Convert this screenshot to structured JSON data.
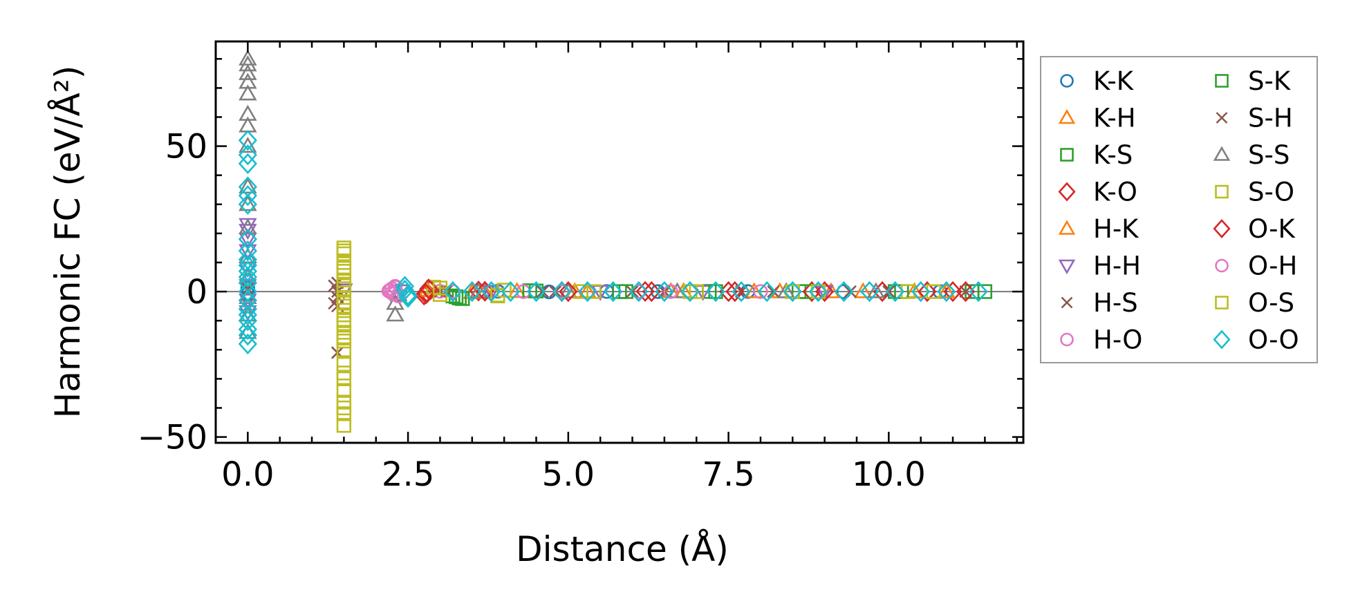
{
  "chart_data": {
    "type": "scatter",
    "xlabel": "Distance (Å)",
    "ylabel": "Harmonic FC (eV/Å²)",
    "xlim": [
      -0.5,
      12.1
    ],
    "ylim": [
      -52,
      86
    ],
    "xticks": [
      0.0,
      2.5,
      5.0,
      7.5,
      10.0
    ],
    "xtick_labels": [
      "0.0",
      "2.5",
      "5.0",
      "7.5",
      "10.0"
    ],
    "yticks": [
      -50,
      0,
      50
    ],
    "ytick_labels": [
      "−50",
      "0",
      "50"
    ],
    "zero_line": true,
    "grid": false,
    "legend_position": "outside right, two columns",
    "series": [
      {
        "name": "K-K",
        "marker": "circle",
        "color": "#1f77b4",
        "points": [
          [
            0.0,
            1.2
          ],
          [
            0.0,
            -0.8
          ],
          [
            3.9,
            0.1
          ],
          [
            4.7,
            -0.1
          ],
          [
            5.6,
            0.05
          ],
          [
            6.4,
            0.0
          ],
          [
            7.8,
            0.02
          ],
          [
            9.3,
            0.0
          ],
          [
            10.8,
            0.0
          ]
        ]
      },
      {
        "name": "K-H",
        "marker": "triangle-up",
        "color": "#ff7f0e",
        "points": [
          [
            2.8,
            0.4
          ],
          [
            3.5,
            -0.3
          ],
          [
            4.2,
            0.1
          ],
          [
            5.3,
            0.0
          ],
          [
            6.6,
            0.05
          ],
          [
            7.9,
            0.0
          ],
          [
            9.1,
            0.0
          ],
          [
            10.4,
            0.0
          ]
        ]
      },
      {
        "name": "K-S",
        "marker": "square",
        "color": "#2ca02c",
        "points": [
          [
            3.2,
            -1.5
          ],
          [
            3.3,
            -2.2
          ],
          [
            4.4,
            0.3
          ],
          [
            5.8,
            0.0
          ],
          [
            7.2,
            0.05
          ],
          [
            8.6,
            0.0
          ],
          [
            10.1,
            0.0
          ],
          [
            11.3,
            0.0
          ]
        ]
      },
      {
        "name": "K-O",
        "marker": "diamond",
        "color": "#d62728",
        "points": [
          [
            2.75,
            -1.2
          ],
          [
            2.8,
            -0.4
          ],
          [
            2.85,
            0.6
          ],
          [
            3.6,
            0.2
          ],
          [
            4.9,
            0.0
          ],
          [
            6.2,
            0.05
          ],
          [
            7.5,
            0.0
          ],
          [
            8.8,
            0.0
          ],
          [
            9.9,
            0.0
          ],
          [
            11.0,
            0.0
          ]
        ]
      },
      {
        "name": "H-K",
        "marker": "triangle-up",
        "color": "#ff7f0e",
        "points": [
          [
            2.8,
            0.5
          ],
          [
            3.7,
            -0.2
          ],
          [
            5.1,
            0.0
          ],
          [
            6.8,
            0.05
          ],
          [
            8.3,
            0.0
          ],
          [
            9.6,
            0.0
          ],
          [
            10.9,
            0.0
          ]
        ]
      },
      {
        "name": "H-H",
        "marker": "triangle-down",
        "color": "#9467bd",
        "points": [
          [
            0.0,
            23
          ],
          [
            0.0,
            21
          ],
          [
            0.0,
            18
          ],
          [
            0.0,
            14
          ],
          [
            0.0,
            8
          ],
          [
            0.0,
            2
          ],
          [
            0.0,
            -3
          ],
          [
            0.0,
            -7
          ],
          [
            1.5,
            0.5
          ],
          [
            2.4,
            0.2
          ],
          [
            3.8,
            0.0
          ],
          [
            5.5,
            0.0
          ],
          [
            7.1,
            0.0
          ],
          [
            9.0,
            0.0
          ]
        ]
      },
      {
        "name": "H-S",
        "marker": "x",
        "color": "#8c564b",
        "points": [
          [
            0.0,
            1
          ],
          [
            1.4,
            3
          ],
          [
            1.4,
            0
          ],
          [
            1.4,
            -2
          ],
          [
            1.4,
            -5
          ],
          [
            1.4,
            -21
          ],
          [
            3.1,
            0.1
          ],
          [
            4.6,
            0.0
          ],
          [
            6.0,
            0.0
          ],
          [
            7.7,
            0.0
          ],
          [
            9.4,
            0.0
          ],
          [
            11.2,
            0.0
          ]
        ]
      },
      {
        "name": "H-O",
        "marker": "circle",
        "color": "#e377c2",
        "points": [
          [
            2.2,
            0.2
          ],
          [
            2.25,
            1.0
          ],
          [
            2.25,
            -0.5
          ],
          [
            2.3,
            1.5
          ],
          [
            2.35,
            -1.0
          ],
          [
            3.0,
            0.1
          ],
          [
            4.3,
            0.0
          ],
          [
            6.1,
            0.0
          ],
          [
            8.0,
            0.0
          ]
        ]
      },
      {
        "name": "S-K",
        "marker": "square",
        "color": "#2ca02c",
        "points": [
          [
            3.25,
            -1.8
          ],
          [
            3.35,
            -2.4
          ],
          [
            4.5,
            0.2
          ],
          [
            5.9,
            0.0
          ],
          [
            7.3,
            0.0
          ],
          [
            8.7,
            0.0
          ],
          [
            10.2,
            0.0
          ],
          [
            11.5,
            0.0
          ]
        ]
      },
      {
        "name": "S-H",
        "marker": "x",
        "color": "#8c564b",
        "points": [
          [
            1.35,
            2
          ],
          [
            1.35,
            -4
          ],
          [
            1.4,
            -21
          ],
          [
            3.0,
            0.0
          ],
          [
            4.8,
            0.0
          ],
          [
            6.5,
            0.0
          ],
          [
            8.2,
            0.0
          ],
          [
            10.0,
            0.0
          ]
        ]
      },
      {
        "name": "S-S",
        "marker": "triangle-up",
        "color": "#7f7f7f",
        "points": [
          [
            0.0,
            80
          ],
          [
            0.0,
            78
          ],
          [
            0.0,
            75
          ],
          [
            0.0,
            72
          ],
          [
            0.0,
            68
          ],
          [
            0.0,
            61
          ],
          [
            0.0,
            57
          ],
          [
            0.0,
            50
          ],
          [
            0.0,
            36
          ],
          [
            0.0,
            30
          ],
          [
            0.0,
            22
          ],
          [
            0.0,
            12
          ],
          [
            0.0,
            5
          ],
          [
            0.0,
            -2
          ],
          [
            0.0,
            -8
          ],
          [
            0.0,
            -14
          ],
          [
            2.3,
            -8
          ],
          [
            2.3,
            -4
          ],
          [
            2.35,
            -1
          ],
          [
            3.6,
            0.0
          ],
          [
            5.0,
            0.0
          ],
          [
            6.7,
            0.0
          ],
          [
            8.4,
            0.0
          ],
          [
            9.8,
            0.0
          ]
        ]
      },
      {
        "name": "S-O",
        "marker": "square",
        "color": "#bcbd22",
        "points": [
          [
            1.5,
            15
          ],
          [
            1.5,
            13
          ],
          [
            1.5,
            10
          ],
          [
            1.5,
            7
          ],
          [
            1.5,
            4
          ],
          [
            1.5,
            1
          ],
          [
            1.5,
            -2
          ],
          [
            1.5,
            -5
          ],
          [
            1.5,
            -8
          ],
          [
            1.5,
            -11
          ],
          [
            1.5,
            -14
          ],
          [
            1.5,
            -17
          ],
          [
            1.5,
            -20
          ],
          [
            1.5,
            -25
          ],
          [
            1.5,
            -30
          ],
          [
            1.5,
            -34
          ],
          [
            1.5,
            -38
          ],
          [
            1.5,
            -42
          ],
          [
            1.5,
            -46
          ],
          [
            2.9,
            1.5
          ],
          [
            3.0,
            -1.0
          ],
          [
            3.9,
            -1.5
          ],
          [
            4.0,
            0.5
          ],
          [
            5.2,
            0.0
          ],
          [
            6.9,
            0.0
          ],
          [
            8.5,
            0.0
          ],
          [
            10.3,
            0.0
          ]
        ]
      },
      {
        "name": "O-K",
        "marker": "diamond",
        "color": "#d62728",
        "points": [
          [
            2.78,
            -0.8
          ],
          [
            2.82,
            0.9
          ],
          [
            3.7,
            0.1
          ],
          [
            5.0,
            0.0
          ],
          [
            6.3,
            0.0
          ],
          [
            7.6,
            0.0
          ],
          [
            9.0,
            0.0
          ],
          [
            10.6,
            0.0
          ],
          [
            11.2,
            0.0
          ]
        ]
      },
      {
        "name": "O-H",
        "marker": "circle",
        "color": "#e377c2",
        "points": [
          [
            2.22,
            0.5
          ],
          [
            2.28,
            -0.8
          ],
          [
            2.3,
            1.8
          ],
          [
            2.35,
            -1.5
          ],
          [
            3.2,
            0.0
          ],
          [
            4.9,
            0.0
          ],
          [
            6.6,
            0.0
          ]
        ]
      },
      {
        "name": "O-S",
        "marker": "square",
        "color": "#bcbd22",
        "points": [
          [
            1.5,
            14
          ],
          [
            1.5,
            8
          ],
          [
            1.5,
            2
          ],
          [
            1.5,
            -4
          ],
          [
            1.5,
            -10
          ],
          [
            1.5,
            -16
          ],
          [
            1.5,
            -28
          ],
          [
            1.5,
            -40
          ],
          [
            3.0,
            1.2
          ],
          [
            3.9,
            -1.2
          ],
          [
            5.4,
            0.0
          ],
          [
            7.0,
            0.0
          ],
          [
            8.9,
            0.0
          ],
          [
            10.7,
            0.0
          ]
        ]
      },
      {
        "name": "O-O",
        "marker": "diamond",
        "color": "#17becf",
        "points": [
          [
            0.0,
            52
          ],
          [
            0.0,
            47
          ],
          [
            0.0,
            44
          ],
          [
            0.0,
            36
          ],
          [
            0.0,
            33
          ],
          [
            0.0,
            30
          ],
          [
            0.0,
            18
          ],
          [
            0.0,
            14
          ],
          [
            0.0,
            11
          ],
          [
            0.0,
            9
          ],
          [
            0.0,
            7
          ],
          [
            0.0,
            5
          ],
          [
            0.0,
            3
          ],
          [
            0.0,
            0
          ],
          [
            0.0,
            -3
          ],
          [
            0.0,
            -6
          ],
          [
            0.0,
            -8
          ],
          [
            0.0,
            -10
          ],
          [
            0.0,
            -13
          ],
          [
            0.0,
            -15
          ],
          [
            0.0,
            -18
          ],
          [
            2.45,
            1.8
          ],
          [
            2.45,
            0.5
          ],
          [
            2.5,
            -1.2
          ],
          [
            2.5,
            -2.0
          ],
          [
            3.2,
            0.0
          ],
          [
            3.5,
            0.0
          ],
          [
            3.8,
            0.0
          ],
          [
            4.1,
            0.0
          ],
          [
            4.5,
            0.0
          ],
          [
            4.9,
            0.0
          ],
          [
            5.3,
            0.0
          ],
          [
            5.7,
            0.0
          ],
          [
            6.1,
            0.0
          ],
          [
            6.5,
            0.0
          ],
          [
            6.9,
            0.0
          ],
          [
            7.3,
            0.0
          ],
          [
            7.7,
            0.0
          ],
          [
            8.1,
            0.0
          ],
          [
            8.5,
            0.0
          ],
          [
            8.9,
            0.0
          ],
          [
            9.3,
            0.0
          ],
          [
            9.7,
            0.0
          ],
          [
            10.1,
            0.0
          ],
          [
            10.5,
            0.0
          ],
          [
            10.9,
            0.0
          ],
          [
            11.4,
            0.0
          ]
        ]
      }
    ]
  }
}
